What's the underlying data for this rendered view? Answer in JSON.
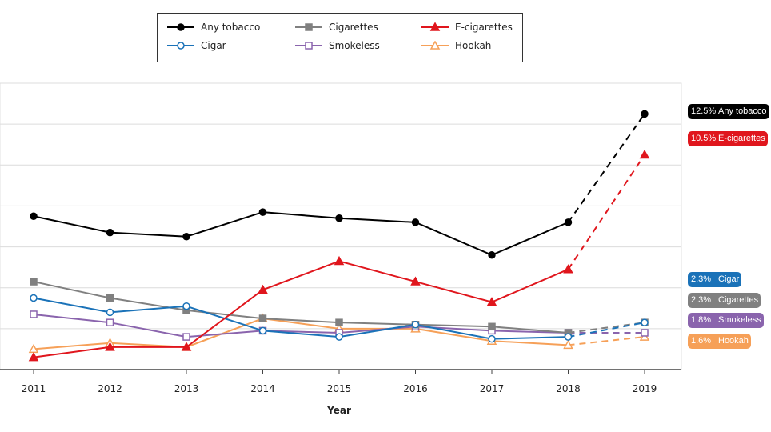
{
  "chart_data": {
    "type": "line",
    "title": "",
    "xlabel": "Year",
    "ylabel": "",
    "x": [
      2011,
      2012,
      2013,
      2014,
      2015,
      2016,
      2017,
      2018,
      2019
    ],
    "x_tick_labels": [
      "2011",
      "2012",
      "2013",
      "2014",
      "2015",
      "2016",
      "2017",
      "2018",
      "2019"
    ],
    "ylim": [
      0,
      14
    ],
    "y_grid_step": 2,
    "grid": true,
    "legend_placement": "top-center",
    "dashed_segment": "2018-2019",
    "series": [
      {
        "name": "Any tobacco",
        "color": "#000000",
        "marker": "filled-circle",
        "values": [
          7.5,
          6.7,
          6.5,
          7.7,
          7.4,
          7.2,
          5.6,
          7.2,
          12.5
        ],
        "end_label": "12.5%"
      },
      {
        "name": "Cigarettes",
        "color": "#808080",
        "marker": "filled-square",
        "values": [
          4.3,
          3.5,
          2.9,
          2.5,
          2.3,
          2.2,
          2.1,
          1.8,
          2.3
        ],
        "end_label": "2.3%"
      },
      {
        "name": "E-cigarettes",
        "color": "#e0161d",
        "marker": "filled-triangle",
        "values": [
          0.6,
          1.1,
          1.1,
          3.9,
          5.3,
          4.3,
          3.3,
          4.9,
          10.5
        ],
        "end_label": "10.5%"
      },
      {
        "name": "Cigar",
        "color": "#1a72b8",
        "marker": "open-circle",
        "values": [
          3.5,
          2.8,
          3.1,
          1.9,
          1.6,
          2.2,
          1.5,
          1.6,
          2.3
        ],
        "end_label": "2.3%"
      },
      {
        "name": "Smokeless",
        "color": "#8a64ad",
        "marker": "open-square",
        "values": [
          2.7,
          2.3,
          1.6,
          1.9,
          1.8,
          2.1,
          1.9,
          1.8,
          1.8
        ],
        "end_label": "1.8%"
      },
      {
        "name": "Hookah",
        "color": "#f6a058",
        "marker": "open-triangle",
        "values": [
          1.0,
          1.3,
          1.1,
          2.5,
          2.0,
          2.0,
          1.4,
          1.2,
          1.6
        ],
        "end_label": "1.6%"
      }
    ],
    "end_label_order": [
      0,
      2,
      3,
      1,
      4,
      5
    ]
  }
}
